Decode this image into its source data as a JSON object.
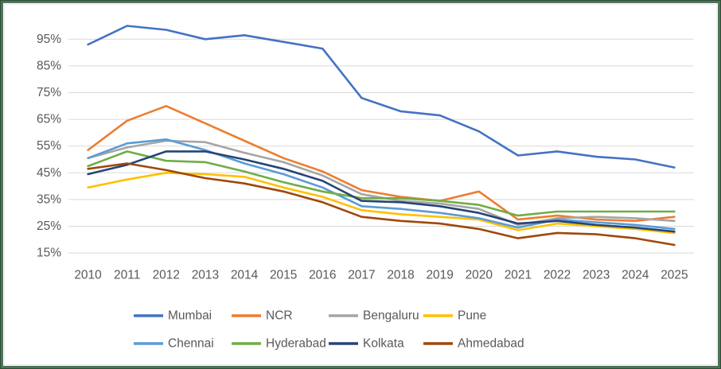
{
  "chart_data": {
    "type": "line",
    "title": "",
    "xlabel": "",
    "ylabel": "",
    "x": [
      "2010",
      "2011",
      "2012",
      "2013",
      "2014",
      "2015",
      "2016",
      "2017",
      "2018",
      "2019",
      "2020",
      "2021",
      "2022",
      "2023",
      "2024",
      "2025"
    ],
    "series": [
      {
        "name": "Mumbai",
        "color": "#4472C4",
        "values": [
          93,
          100,
          98.5,
          95,
          96.5,
          94,
          91.5,
          73,
          68,
          66.5,
          60.5,
          51.5,
          53,
          51,
          50,
          47
        ]
      },
      {
        "name": "NCR",
        "color": "#ED7D31",
        "values": [
          53.5,
          64.5,
          70,
          63.5,
          57,
          50.5,
          45.5,
          38.5,
          36,
          34.5,
          38,
          27.5,
          29,
          27.5,
          27,
          28.5
        ]
      },
      {
        "name": "Bengaluru",
        "color": "#A5A5A5",
        "values": [
          50.5,
          54.5,
          57,
          56.5,
          52.5,
          49,
          44,
          37,
          34.5,
          33.5,
          31.5,
          25.5,
          28,
          28.5,
          28,
          27
        ]
      },
      {
        "name": "Pune",
        "color": "#FFC000",
        "values": [
          39.5,
          42.5,
          45,
          44.5,
          43.5,
          39.5,
          36,
          31,
          29.5,
          28.5,
          27.5,
          23.5,
          26,
          25,
          24,
          22.5
        ]
      },
      {
        "name": "Chennai",
        "color": "#5B9BD5",
        "values": [
          50.5,
          56,
          57.5,
          53.5,
          48.5,
          44.5,
          39.5,
          32.5,
          31.5,
          30,
          28,
          24.5,
          27.5,
          26.5,
          25.5,
          24
        ]
      },
      {
        "name": "Hyderabad",
        "color": "#70AD47",
        "values": [
          47.5,
          53,
          49.5,
          49,
          45.5,
          41.5,
          38,
          35.5,
          35.5,
          34.5,
          33,
          29,
          30.5,
          30.5,
          30.5,
          30.5
        ]
      },
      {
        "name": "Kolkata",
        "color": "#264478",
        "values": [
          44.5,
          48,
          53,
          53,
          50,
          46.5,
          42,
          34.5,
          34,
          32.5,
          30,
          26,
          27,
          25.5,
          24.5,
          23
        ]
      },
      {
        "name": "Ahmedabad",
        "color": "#9E480E",
        "values": [
          46.5,
          48.5,
          46,
          43,
          41,
          38,
          34,
          28.5,
          27,
          26,
          24,
          20.5,
          22.5,
          22,
          20.5,
          18
        ]
      }
    ],
    "y_ticks": [
      15,
      25,
      35,
      45,
      55,
      65,
      75,
      85,
      95
    ],
    "y_tick_suffix": "%",
    "ylim": [
      15,
      103
    ],
    "grid": true,
    "legend_position": "bottom",
    "legend_rows": [
      [
        "Mumbai",
        "NCR",
        "Bengaluru",
        "Pune"
      ],
      [
        "Chennai",
        "Hyderabad",
        "Kolkata",
        "Ahmedabad"
      ]
    ]
  },
  "style": {
    "frame_border_outer": "#2E4F37",
    "frame_border_inner": "#50745A",
    "plot_inner_border": "#EDEDED",
    "gridline_color": "#D9D9D9",
    "tick_text_color": "#595959",
    "background": "#FFFFFF"
  }
}
